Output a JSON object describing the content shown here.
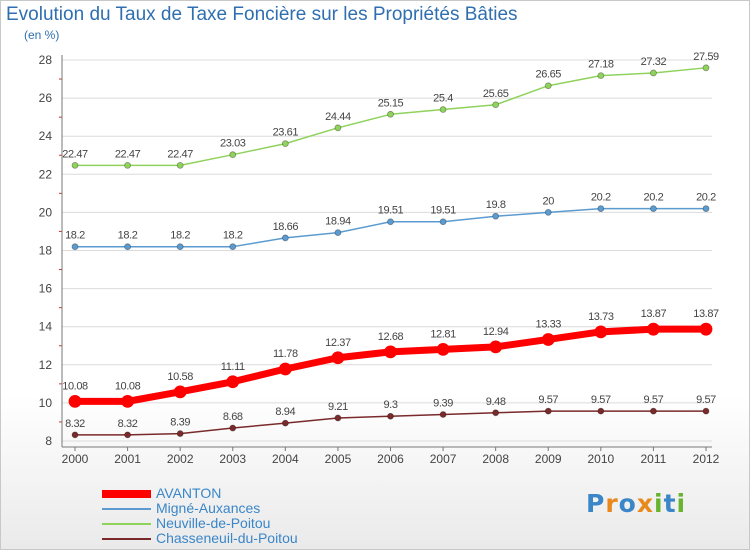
{
  "header": {
    "title": "Evolution du Taux de Taxe Foncière sur les Propriétés Bâties",
    "subtitle": "(en %)"
  },
  "brand": {
    "text": "Proxiti",
    "letter_colors": [
      "#3a86c8",
      "#e8891d",
      "#3a86c8",
      "#e8891d",
      "#68b42f",
      "#3a86c8",
      "#68b42f"
    ]
  },
  "chart_data": {
    "type": "line",
    "title": "Evolution du Taux de Taxe Foncière sur les Propriétés Bâties",
    "ylabel": "(en %)",
    "xlabel": "",
    "ylim": [
      8,
      28
    ],
    "yticks": [
      8,
      10,
      12,
      14,
      16,
      18,
      20,
      22,
      24,
      26,
      28
    ],
    "grid": true,
    "legend_position": "bottom-left",
    "x": [
      "2000",
      "2001",
      "2002",
      "2003",
      "2004",
      "2005",
      "2006",
      "2007",
      "2008",
      "2009",
      "2010",
      "2011",
      "2012"
    ],
    "series": [
      {
        "name": "AVANTON",
        "color": "#ff0000",
        "emphasis": true,
        "values": [
          10.08,
          10.08,
          10.58,
          11.11,
          11.78,
          12.37,
          12.68,
          12.81,
          12.94,
          13.33,
          13.73,
          13.87,
          13.87
        ],
        "labels": [
          "10.08",
          "10.08",
          "10.58",
          "11.11",
          "11.78",
          "12.37",
          "12.68",
          "12.81",
          "12.94",
          "13.33",
          "13.73",
          "13.87",
          "13.87"
        ]
      },
      {
        "name": "Migné-Auxances",
        "color": "#5b9bd0",
        "emphasis": false,
        "values": [
          18.2,
          18.2,
          18.2,
          18.2,
          18.66,
          18.94,
          19.51,
          19.51,
          19.8,
          20,
          20.2,
          20.2,
          20.2
        ],
        "labels": [
          "18.2",
          "18.2",
          "18.2",
          "18.2",
          "18.66",
          "18.94",
          "19.51",
          "19.51",
          "19.8",
          "20",
          "20.2",
          "20.2",
          "20.2"
        ]
      },
      {
        "name": "Neuville-de-Poitou",
        "color": "#8fd25c",
        "emphasis": false,
        "values": [
          22.47,
          22.47,
          22.47,
          23.03,
          23.61,
          24.44,
          25.15,
          25.4,
          25.65,
          26.65,
          27.18,
          27.32,
          27.59
        ],
        "labels": [
          "22.47",
          "22.47",
          "22.47",
          "23.03",
          "23.61",
          "24.44",
          "25.15",
          "25.4",
          "25.65",
          "26.65",
          "27.18",
          "27.32",
          "27.59"
        ]
      },
      {
        "name": "Chasseneuil-du-Poitou",
        "color": "#7a2a2a",
        "emphasis": false,
        "values": [
          8.32,
          8.32,
          8.39,
          8.68,
          8.94,
          9.21,
          9.3,
          9.39,
          9.48,
          9.57,
          9.57,
          9.57,
          9.57
        ],
        "labels": [
          "8.32",
          "8.32",
          "8.39",
          "8.68",
          "8.94",
          "9.21",
          "9.3",
          "9.39",
          "9.48",
          "9.57",
          "9.57",
          "9.57",
          "9.57"
        ]
      }
    ]
  }
}
